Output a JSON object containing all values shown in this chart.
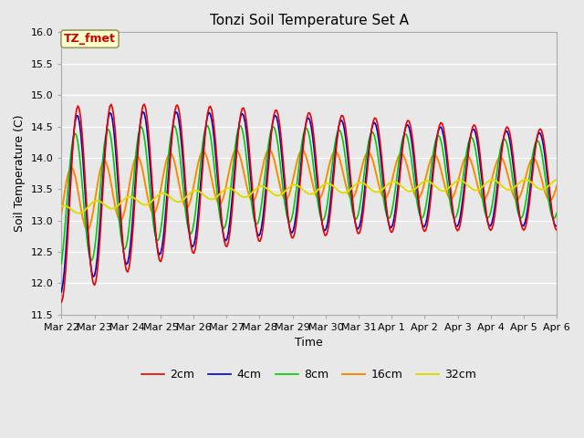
{
  "title": "Tonzi Soil Temperature Set A",
  "xlabel": "Time",
  "ylabel": "Soil Temperature (C)",
  "ylim": [
    11.5,
    16.0
  ],
  "annotation_text": "TZ_fmet",
  "annotation_color": "#cc0000",
  "annotation_bg": "#ffffcc",
  "annotation_border": "#999966",
  "bg_color": "#e8e8e8",
  "grid_color": "white",
  "line_colors": {
    "2cm": "#ee0000",
    "4cm": "#0000cc",
    "8cm": "#00cc00",
    "16cm": "#ff8800",
    "32cm": "#dddd00"
  },
  "x_ticks": [
    "Mar 22",
    "Mar 23",
    "Mar 24",
    "Mar 25",
    "Mar 26",
    "Mar 27",
    "Mar 28",
    "Mar 29",
    "Mar 30",
    "Mar 31",
    "Apr 1",
    "Apr 2",
    "Apr 3",
    "Apr 4",
    "Apr 5",
    "Apr 6"
  ],
  "legend_entries": [
    "2cm",
    "4cm",
    "8cm",
    "16cm",
    "32cm"
  ]
}
